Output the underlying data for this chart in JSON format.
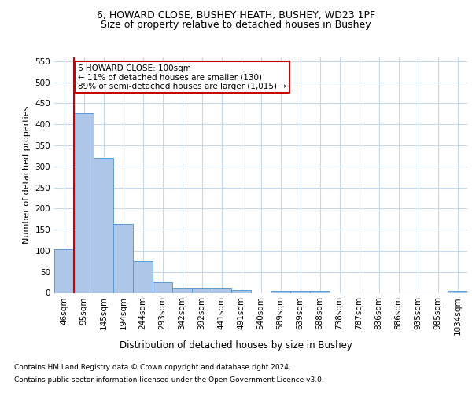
{
  "title1": "6, HOWARD CLOSE, BUSHEY HEATH, BUSHEY, WD23 1PF",
  "title2": "Size of property relative to detached houses in Bushey",
  "xlabel": "Distribution of detached houses by size in Bushey",
  "ylabel": "Number of detached properties",
  "categories": [
    "46sqm",
    "95sqm",
    "145sqm",
    "194sqm",
    "244sqm",
    "293sqm",
    "342sqm",
    "392sqm",
    "441sqm",
    "491sqm",
    "540sqm",
    "589sqm",
    "639sqm",
    "688sqm",
    "738sqm",
    "787sqm",
    "836sqm",
    "886sqm",
    "935sqm",
    "985sqm",
    "1034sqm"
  ],
  "values": [
    103,
    426,
    320,
    163,
    75,
    25,
    11,
    11,
    11,
    6,
    0,
    5,
    5,
    5,
    0,
    0,
    0,
    0,
    0,
    0,
    5
  ],
  "bar_color": "#aec6e8",
  "bar_edge_color": "#5b9bd5",
  "vline_color": "#cc0000",
  "vline_x_index": 1,
  "annotation_text": "6 HOWARD CLOSE: 100sqm\n← 11% of detached houses are smaller (130)\n89% of semi-detached houses are larger (1,015) →",
  "annotation_box_color": "#ffffff",
  "annotation_edge_color": "#cc0000",
  "ylim": [
    0,
    560
  ],
  "yticks": [
    0,
    50,
    100,
    150,
    200,
    250,
    300,
    350,
    400,
    450,
    500,
    550
  ],
  "footer1": "Contains HM Land Registry data © Crown copyright and database right 2024.",
  "footer2": "Contains public sector information licensed under the Open Government Licence v3.0.",
  "background_color": "#ffffff",
  "grid_color": "#c8d8e8",
  "title1_fontsize": 9,
  "title2_fontsize": 9,
  "xlabel_fontsize": 8.5,
  "ylabel_fontsize": 8,
  "tick_fontsize": 7.5,
  "footer_fontsize": 6.5,
  "ann_fontsize": 7.5
}
